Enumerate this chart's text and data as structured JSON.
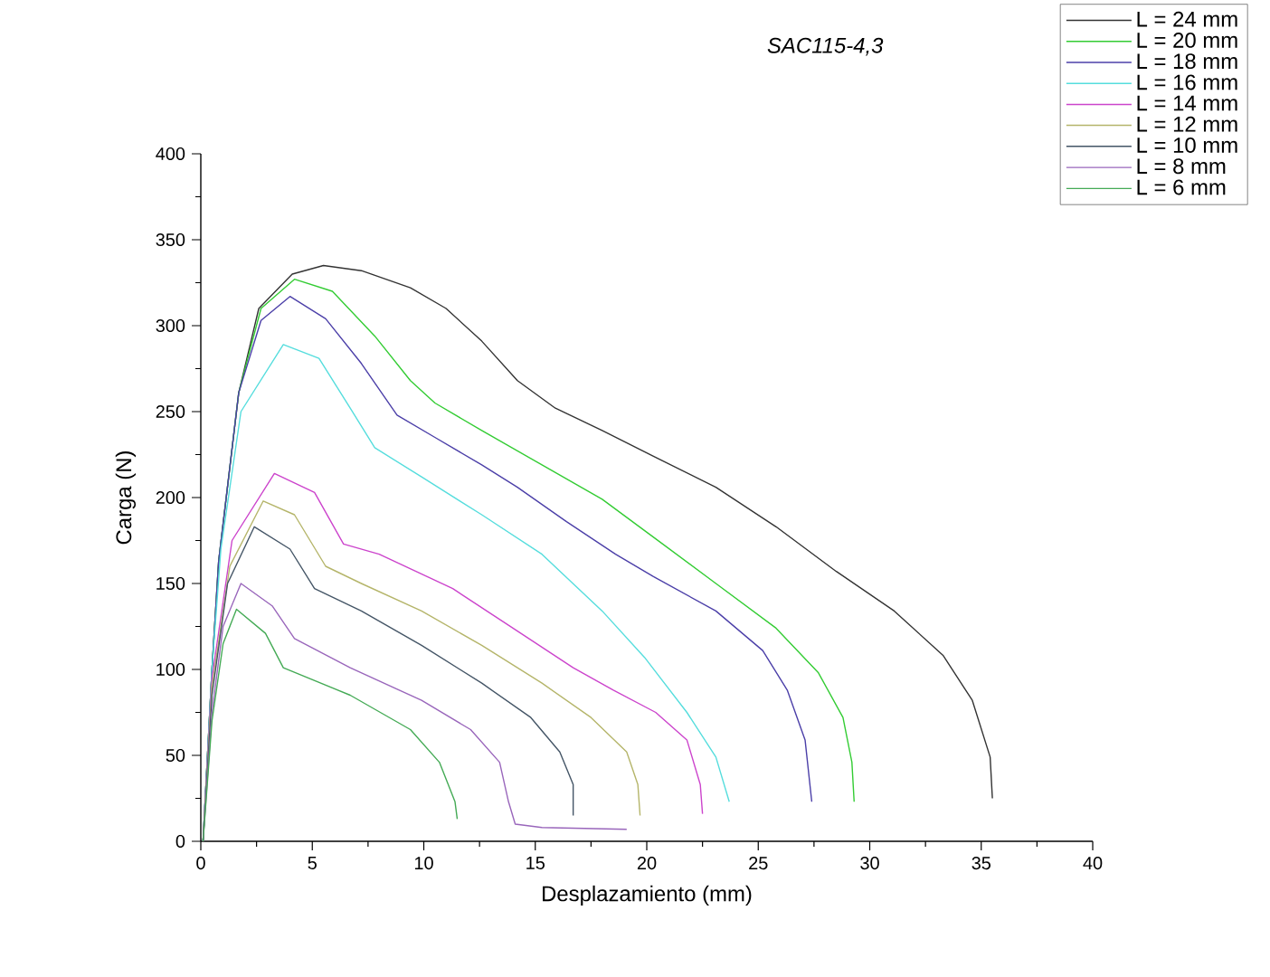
{
  "chart_data": {
    "type": "line",
    "title": "*SAC115-4,3*",
    "xlabel": "Desplazamiento (mm)",
    "ylabel": "Carga (N)",
    "xlim": [
      0,
      40
    ],
    "ylim": [
      0,
      400
    ],
    "xticks": [
      0,
      5,
      10,
      15,
      20,
      25,
      30,
      35,
      40
    ],
    "yticks": [
      0,
      50,
      100,
      150,
      200,
      250,
      300,
      350,
      400
    ],
    "legend": "top right",
    "series": [
      {
        "name": "L = 24 mm",
        "color": "#333333",
        "x": [
          0.1,
          0.5,
          0.8,
          1.7,
          2.6,
          4.1,
          5.5,
          7.2,
          9.4,
          11,
          12.6,
          14.2,
          15.9,
          18,
          20.3,
          23.1,
          25.8,
          28.5,
          31.1,
          33.3,
          34.6,
          35.4,
          35.5
        ],
        "values": [
          0,
          100,
          163,
          261,
          310,
          330,
          335,
          332,
          322,
          310,
          291,
          268,
          252,
          239,
          224,
          206,
          183,
          157,
          134,
          108,
          82,
          49,
          25
        ]
      },
      {
        "name": "L = 20 mm",
        "color": "#33cc33",
        "x": [
          0.1,
          0.5,
          0.8,
          1.7,
          2.7,
          4.2,
          5.9,
          7.8,
          9.4,
          10.5,
          12.6,
          15.3,
          18,
          20.4,
          23.1,
          25.8,
          27.7,
          28.8,
          29.2,
          29.3
        ],
        "values": [
          0,
          100,
          163,
          261,
          310,
          327,
          320,
          294,
          268,
          255,
          239,
          219,
          199,
          176,
          150,
          124,
          98,
          72,
          46,
          23
        ]
      },
      {
        "name": "L = 18 mm",
        "color": "#4b3fa8",
        "x": [
          0.1,
          0.5,
          0.8,
          1.7,
          2.7,
          4,
          5.6,
          7.2,
          8.8,
          10.5,
          12.6,
          14.2,
          16.4,
          18.6,
          20.3,
          23.1,
          25.2,
          26.3,
          27.1,
          27.4
        ],
        "values": [
          0,
          100,
          163,
          261,
          303,
          317,
          304,
          278,
          248,
          235,
          219,
          206,
          186,
          167,
          154,
          134,
          111,
          88,
          59,
          23
        ]
      },
      {
        "name": "L = 16 mm",
        "color": "#55dddd",
        "x": [
          0.1,
          0.5,
          0.9,
          1.8,
          3.7,
          5.3,
          6.7,
          7.8,
          9.9,
          12.6,
          15.3,
          18,
          19.9,
          21.8,
          23.1,
          23.7
        ],
        "values": [
          0,
          100,
          170,
          250,
          289,
          281,
          252,
          229,
          212,
          190,
          167,
          134,
          107,
          75,
          49,
          23
        ]
      },
      {
        "name": "L = 14 mm",
        "color": "#cc44cc",
        "x": [
          0.1,
          0.5,
          1.4,
          3.3,
          5.1,
          6.4,
          8,
          11.3,
          14,
          16.7,
          18.5,
          20.4,
          21.8,
          22.4,
          22.5
        ],
        "values": [
          0,
          95,
          175,
          214,
          203,
          173,
          167,
          147,
          124,
          101,
          88,
          75,
          59,
          33,
          16
        ]
      },
      {
        "name": "L = 12 mm",
        "color": "#b5b56a",
        "x": [
          0.1,
          0.5,
          1.3,
          2.8,
          4.2,
          5.6,
          7.2,
          9.9,
          12.6,
          15.3,
          17.5,
          19.1,
          19.6,
          19.7
        ],
        "values": [
          0,
          90,
          160,
          198,
          190,
          160,
          150,
          134,
          114,
          92,
          72,
          52,
          33,
          15
        ]
      },
      {
        "name": "L = 10 mm",
        "color": "#445566",
        "x": [
          0.1,
          0.5,
          1.2,
          2.4,
          4,
          5.1,
          7.2,
          9.9,
          12.6,
          14.8,
          16.1,
          16.7,
          16.7
        ],
        "values": [
          0,
          85,
          150,
          183,
          170,
          147,
          134,
          114,
          92,
          72,
          52,
          33,
          15
        ]
      },
      {
        "name": "L = 8 mm",
        "color": "#9966bb",
        "x": [
          0.1,
          0.5,
          1,
          1.8,
          3.2,
          4.2,
          6.7,
          9.9,
          12.1,
          13.4,
          13.8,
          14.1,
          15.3,
          19.1
        ],
        "values": [
          0,
          75,
          125,
          150,
          137,
          118,
          101,
          82,
          65,
          46,
          23,
          10,
          8,
          7
        ]
      },
      {
        "name": "L = 6 mm",
        "color": "#44aa55",
        "x": [
          0.1,
          0.5,
          1,
          1.6,
          2.9,
          3.7,
          6.7,
          9.4,
          10.7,
          11.4,
          11.5
        ],
        "values": [
          0,
          70,
          115,
          135,
          121,
          101,
          85,
          65,
          46,
          23,
          13
        ]
      }
    ]
  }
}
